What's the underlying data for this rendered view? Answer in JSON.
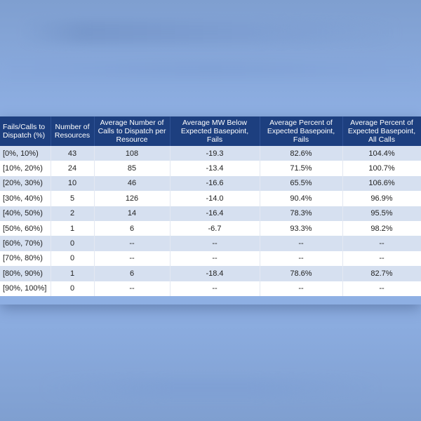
{
  "table": {
    "columns": [
      "Fails/Calls to Dispatch (%)",
      "Number of Resources",
      "Average Number of Calls to Dispatch per Resource",
      "Average MW Below Expected Basepoint, Fails",
      "Average Percent of Expected Basepoint, Fails",
      "Average Percent of Expected Basepoint, All Calls"
    ],
    "rows": [
      [
        "[0%, 10%)",
        "43",
        "108",
        "-19.3",
        "82.6%",
        "104.4%"
      ],
      [
        "[10%, 20%)",
        "24",
        "85",
        "-13.4",
        "71.5%",
        "100.7%"
      ],
      [
        "[20%, 30%)",
        "10",
        "46",
        "-16.6",
        "65.5%",
        "106.6%"
      ],
      [
        "[30%, 40%)",
        "5",
        "126",
        "-14.0",
        "90.4%",
        "96.9%"
      ],
      [
        "[40%, 50%)",
        "2",
        "14",
        "-16.4",
        "78.3%",
        "95.5%"
      ],
      [
        "[50%, 60%)",
        "1",
        "6",
        "-6.7",
        "93.3%",
        "98.2%"
      ],
      [
        "[60%, 70%)",
        "0",
        "--",
        "--",
        "--",
        "--"
      ],
      [
        "[70%, 80%)",
        "0",
        "--",
        "--",
        "--",
        "--"
      ],
      [
        "[80%, 90%)",
        "1",
        "6",
        "-18.4",
        "78.6%",
        "82.7%"
      ],
      [
        "[90%, 100%]",
        "0",
        "--",
        "--",
        "--",
        "--"
      ]
    ]
  },
  "colors": {
    "header_bg": "#1d3f7f",
    "row_alt_bg": "#d6e0f0",
    "background": "#8fb0e4"
  }
}
